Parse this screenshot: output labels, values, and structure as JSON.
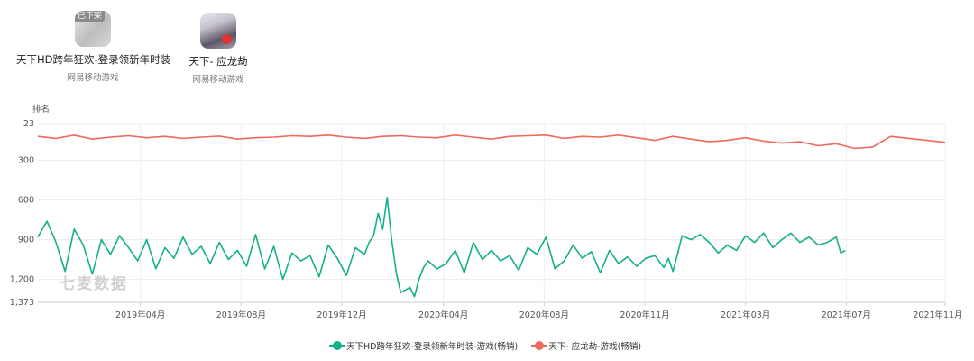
{
  "apps": [
    {
      "name": "天下HD跨年狂欢-登录领新年时装",
      "publisher": "网易移动游戏",
      "badge": "已下架",
      "icon": "game-icon-tianxia-hd"
    },
    {
      "name": "天下- 应龙劫",
      "publisher": "网易移动游戏",
      "icon": "game-icon-tianxia-yinglongjie"
    }
  ],
  "watermark": "七麦数据",
  "chart_data": {
    "type": "line",
    "ylabel": "排名",
    "y_inverted": true,
    "ylim": [
      23,
      1373
    ],
    "y_ticks": [
      23,
      300,
      600,
      900,
      1200,
      1373
    ],
    "y_tick_labels": [
      "23",
      "300",
      "600",
      "900",
      "1,200",
      "1,373"
    ],
    "x_ticks": [
      "2019年04月",
      "2019年08月",
      "2019年12月",
      "2020年04月",
      "2020年08月",
      "2020年11月",
      "2021年03月",
      "2021年07月",
      "2021年11月"
    ],
    "grid": true,
    "legend_position": "bottom",
    "series": [
      {
        "name": "天下HD跨年狂欢-登录领新年时装-游戏(畅销)",
        "color": "#14b08b",
        "x": [
          0,
          0.01,
          0.02,
          0.03,
          0.04,
          0.05,
          0.06,
          0.07,
          0.08,
          0.09,
          0.1,
          0.11,
          0.12,
          0.13,
          0.14,
          0.15,
          0.16,
          0.17,
          0.18,
          0.19,
          0.2,
          0.21,
          0.22,
          0.23,
          0.24,
          0.25,
          0.26,
          0.27,
          0.28,
          0.29,
          0.3,
          0.31,
          0.32,
          0.33,
          0.34,
          0.35,
          0.36,
          0.365,
          0.37,
          0.375,
          0.38,
          0.385,
          0.39,
          0.395,
          0.4,
          0.405,
          0.41,
          0.415,
          0.42,
          0.425,
          0.43,
          0.44,
          0.45,
          0.46,
          0.47,
          0.48,
          0.49,
          0.5,
          0.51,
          0.52,
          0.53,
          0.54,
          0.55,
          0.56,
          0.57,
          0.58,
          0.59,
          0.6,
          0.61,
          0.62,
          0.63,
          0.64,
          0.65,
          0.66,
          0.67,
          0.68,
          0.69,
          0.695,
          0.7,
          0.705,
          0.71,
          0.72,
          0.73,
          0.74,
          0.75,
          0.76,
          0.77,
          0.78,
          0.79,
          0.8,
          0.81,
          0.82,
          0.83,
          0.84,
          0.85,
          0.86,
          0.87,
          0.88,
          0.885,
          0.89
        ],
        "values": [
          880,
          760,
          920,
          1140,
          820,
          940,
          1160,
          900,
          1010,
          870,
          960,
          1060,
          900,
          1120,
          960,
          1040,
          880,
          1010,
          950,
          1080,
          920,
          1050,
          980,
          1100,
          860,
          1120,
          950,
          1200,
          1000,
          1060,
          1020,
          1180,
          940,
          1040,
          1170,
          960,
          1010,
          920,
          870,
          700,
          820,
          580,
          900,
          1150,
          1300,
          1280,
          1260,
          1330,
          1200,
          1110,
          1060,
          1120,
          1080,
          980,
          1150,
          920,
          1050,
          980,
          1060,
          1020,
          1130,
          960,
          1010,
          880,
          1120,
          1060,
          940,
          1040,
          990,
          1150,
          980,
          1080,
          1030,
          1100,
          1040,
          1020,
          1110,
          1040,
          1140,
          1010,
          870,
          900,
          860,
          920,
          1000,
          940,
          980,
          870,
          920,
          850,
          960,
          900,
          850,
          920,
          880,
          940,
          920,
          880,
          1000,
          980
        ],
        "values_unit": "rank"
      },
      {
        "name": "天下- 应龙劫-游戏(畅销)",
        "color": "#f0685e",
        "x": [
          0,
          0.02,
          0.04,
          0.06,
          0.08,
          0.1,
          0.12,
          0.14,
          0.16,
          0.18,
          0.2,
          0.22,
          0.24,
          0.26,
          0.28,
          0.3,
          0.32,
          0.34,
          0.36,
          0.38,
          0.4,
          0.42,
          0.44,
          0.46,
          0.48,
          0.5,
          0.52,
          0.54,
          0.56,
          0.58,
          0.6,
          0.62,
          0.64,
          0.66,
          0.68,
          0.7,
          0.72,
          0.74,
          0.76,
          0.78,
          0.8,
          0.82,
          0.84,
          0.86,
          0.88,
          0.9,
          0.92,
          0.94,
          0.96,
          0.98,
          1.0
        ],
        "values": [
          120,
          135,
          110,
          140,
          125,
          115,
          130,
          120,
          135,
          125,
          118,
          140,
          130,
          125,
          115,
          120,
          110,
          125,
          135,
          120,
          115,
          125,
          130,
          110,
          125,
          140,
          120,
          115,
          110,
          135,
          120,
          125,
          110,
          130,
          150,
          120,
          140,
          160,
          150,
          130,
          155,
          170,
          160,
          190,
          175,
          210,
          200,
          120,
          135,
          150,
          165
        ],
        "values_unit": "rank"
      }
    ]
  }
}
